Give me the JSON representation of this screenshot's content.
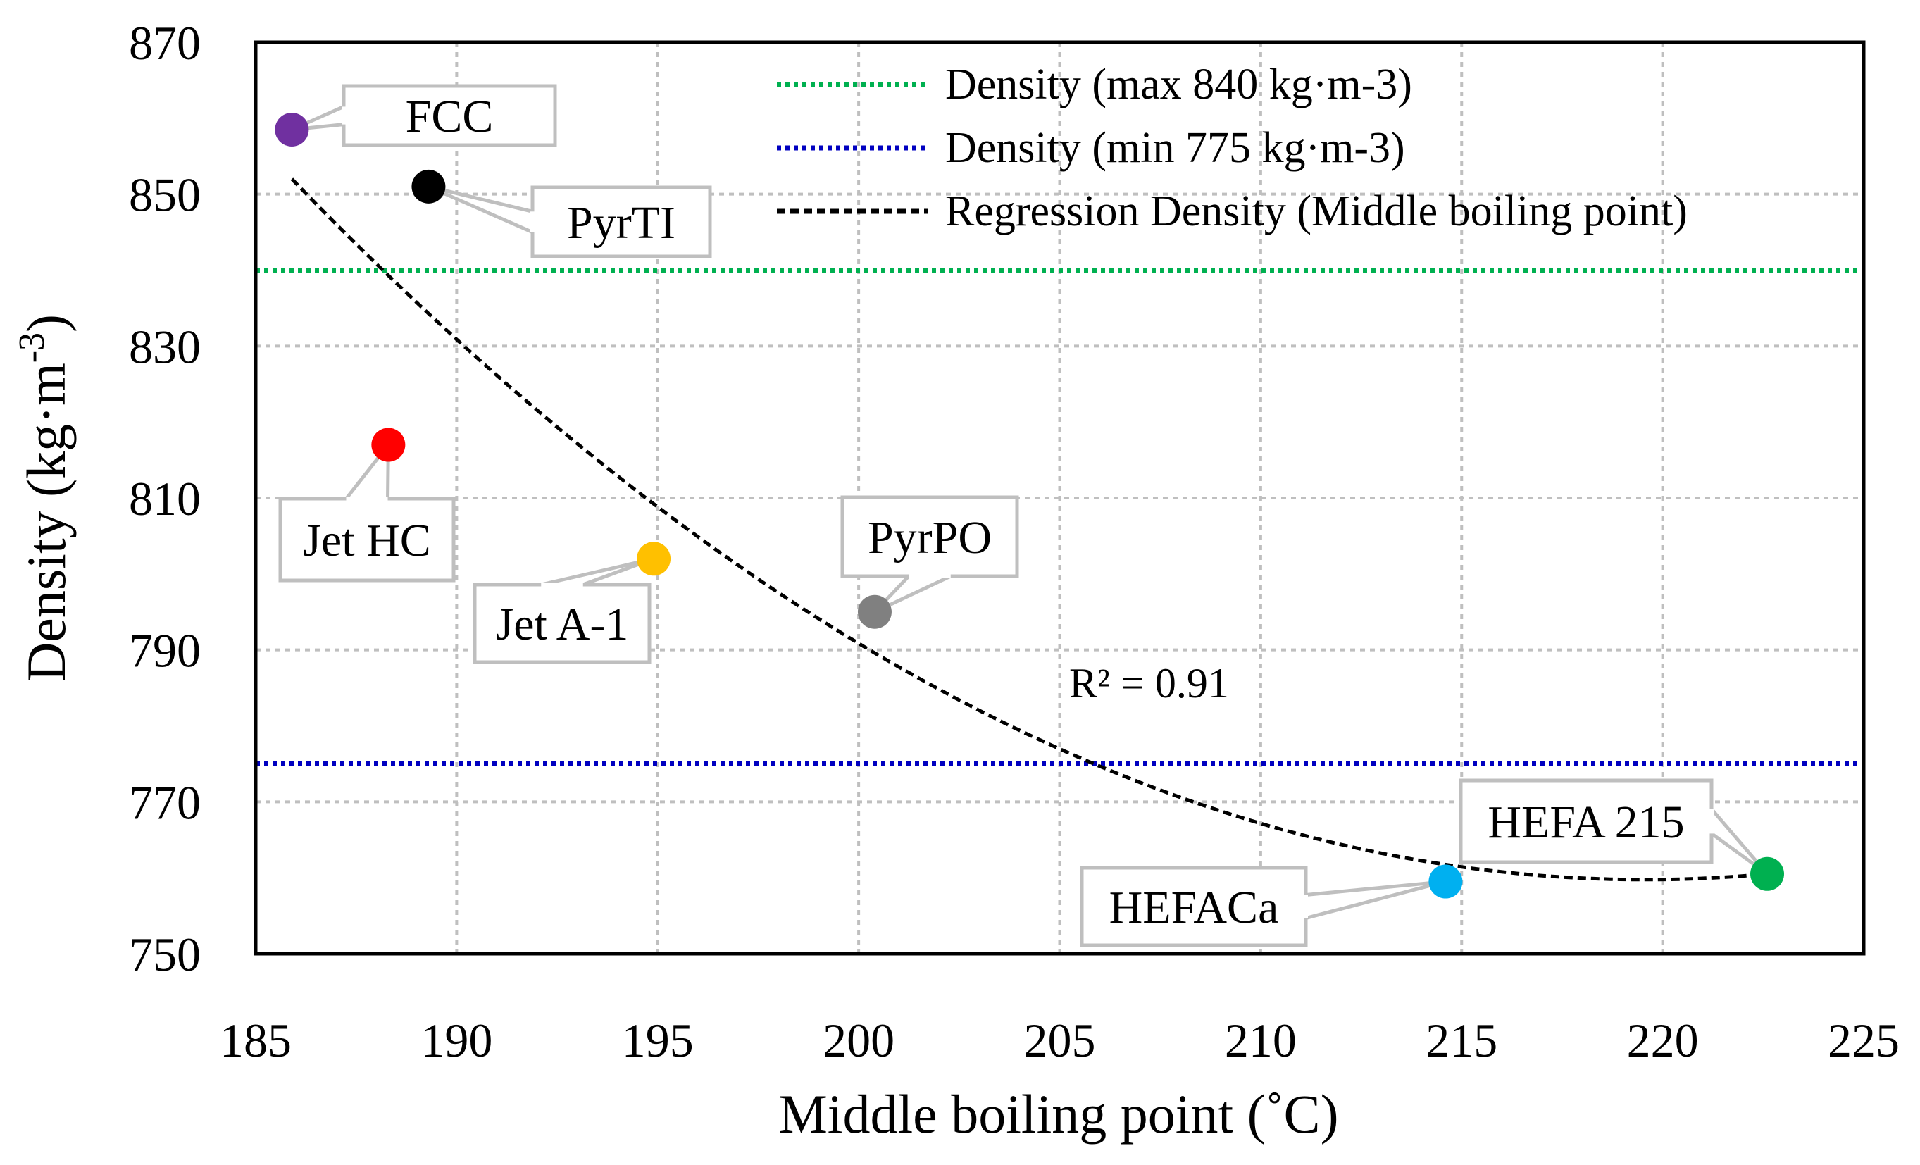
{
  "chart_data": {
    "type": "scatter",
    "xlabel": "Middle boiling point (˚C)",
    "ylabel": {
      "main": "Density (kg·m",
      "sup": "-3",
      "close": ")"
    },
    "xlim": [
      185,
      225
    ],
    "ylim": [
      750,
      870
    ],
    "x_ticks": [
      185,
      190,
      195,
      200,
      205,
      210,
      215,
      220,
      225
    ],
    "y_ticks": [
      750,
      770,
      790,
      810,
      830,
      850,
      870
    ],
    "grid": true,
    "legend_position": "top-right",
    "points": [
      {
        "name": "FCC",
        "x": 185.9,
        "y": 858.5,
        "color": "#7030A0"
      },
      {
        "name": "PyrTI",
        "x": 189.3,
        "y": 851.0,
        "color": "#000000"
      },
      {
        "name": "Jet HC",
        "x": 188.3,
        "y": 817.0,
        "color": "#FF0000"
      },
      {
        "name": "Jet A-1",
        "x": 194.9,
        "y": 802.0,
        "color": "#FFC000"
      },
      {
        "name": "PyrPO",
        "x": 200.4,
        "y": 795.0,
        "color": "#808080"
      },
      {
        "name": "HEFACa",
        "x": 214.6,
        "y": 759.5,
        "color": "#00B0F0"
      },
      {
        "name": "HEFA 215",
        "x": 222.6,
        "y": 760.5,
        "color": "#00B050"
      }
    ],
    "reference_lines": [
      {
        "label": "Density (max 840 kg·m-3)",
        "y": 840,
        "color": "#00B050",
        "style": "dotted"
      },
      {
        "label": "Density (min 775 kg·m-3)",
        "y": 775,
        "color": "#0000C0",
        "style": "dotted"
      }
    ],
    "regression": {
      "label": "Regression Density (Middle boiling point)",
      "type": "polynomial-2",
      "x_range": [
        185.9,
        222.6
      ],
      "points": [
        [
          185.9,
          852
        ],
        [
          205.5,
          775.8
        ],
        [
          218.8,
          759.8
        ],
        [
          222.6,
          760.5
        ]
      ],
      "color": "#000000",
      "style": "dashed",
      "r2_label": "R² = 0.91"
    }
  }
}
